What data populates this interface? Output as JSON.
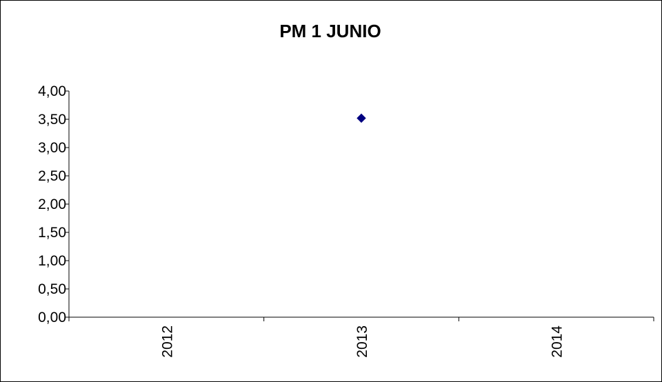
{
  "chart_data": {
    "type": "scatter",
    "title": "PM 1 JUNIO",
    "xlabel": "",
    "ylabel": "",
    "categories": [
      "2012",
      "2013",
      "2014"
    ],
    "ylim": [
      0,
      4
    ],
    "yticks": [
      "0,00",
      "0,50",
      "1,00",
      "1,50",
      "2,00",
      "2,50",
      "3,00",
      "3,50",
      "4,00"
    ],
    "series": [
      {
        "values": [
          null,
          3.52,
          null
        ],
        "color": "#000080",
        "marker": "diamond"
      }
    ],
    "grid": false,
    "legend": "none"
  }
}
